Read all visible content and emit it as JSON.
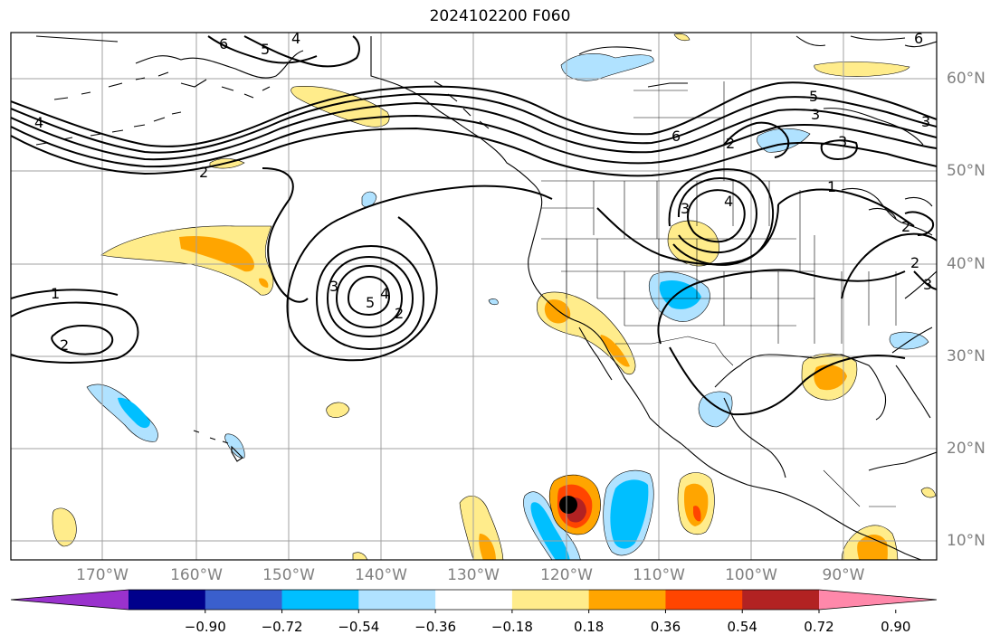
{
  "title": "2024102200 F060",
  "lon_labels": [
    "170°W",
    "160°W",
    "150°W",
    "140°W",
    "130°W",
    "120°W",
    "110°W",
    "100°W",
    "90°W"
  ],
  "lat_labels": [
    "60°N",
    "50°N",
    "40°N",
    "30°N",
    "20°N",
    "10°N"
  ],
  "contour_labels": [
    "6",
    "5",
    "4",
    "4",
    "2",
    "5",
    "3",
    "3",
    "6",
    "3",
    "2",
    "4",
    "3",
    "1",
    "3",
    "5",
    "4",
    "2",
    "1",
    "2",
    "2",
    "2",
    "3",
    "6"
  ],
  "colorbar": {
    "ticks": [
      "−0.90",
      "−0.72",
      "−0.54",
      "−0.36",
      "−0.18",
      "0.18",
      "0.36",
      "0.54",
      "0.72",
      "0.90"
    ],
    "colors": [
      "#9a32cd",
      "#00008b",
      "#3a5fcd",
      "#00bfff",
      "#b0e2ff",
      "#ffffff",
      "#ffec8b",
      "#ffa500",
      "#ff4500",
      "#b22222",
      "#ff88aa"
    ]
  }
}
